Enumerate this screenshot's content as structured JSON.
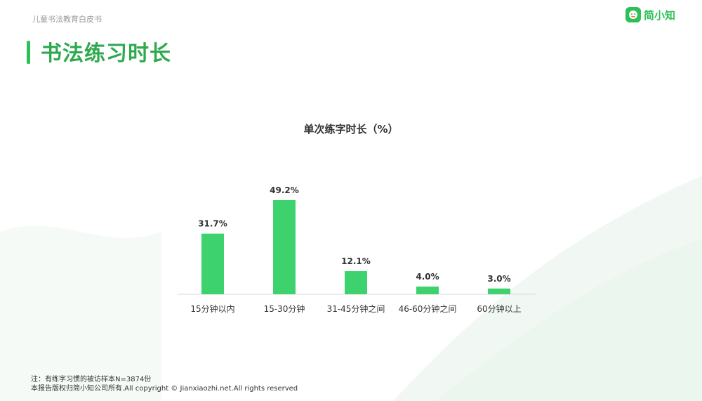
{
  "header": {
    "report_name": "儿童书法教育白皮书",
    "brand_name": "简小知",
    "brand_icon": "mascot-icon"
  },
  "page_title": "书法练习时长",
  "colors": {
    "accent": "#2fbf58",
    "bar": "#3dd26e",
    "title": "#2fa94f"
  },
  "chart_data": {
    "type": "bar",
    "title": "单次练字时长（%）",
    "categories": [
      "15分钟以内",
      "15-30分钟",
      "31-45分钟之间",
      "46-60分钟之间",
      "60分钟以上"
    ],
    "values": [
      31.7,
      49.2,
      12.1,
      4.0,
      3.0
    ],
    "value_labels": [
      "31.7%",
      "49.2%",
      "12.1%",
      "4.0%",
      "3.0%"
    ],
    "unit": "%",
    "ylim": [
      0,
      49.2
    ],
    "grid": false,
    "legend": "none"
  },
  "footer": {
    "note": "注：有练字习惯的被访样本N=3874份",
    "copyright": "本报告版权归简小知公司所有.All copyright © Jianxiaozhi.net.All rights reserved"
  }
}
